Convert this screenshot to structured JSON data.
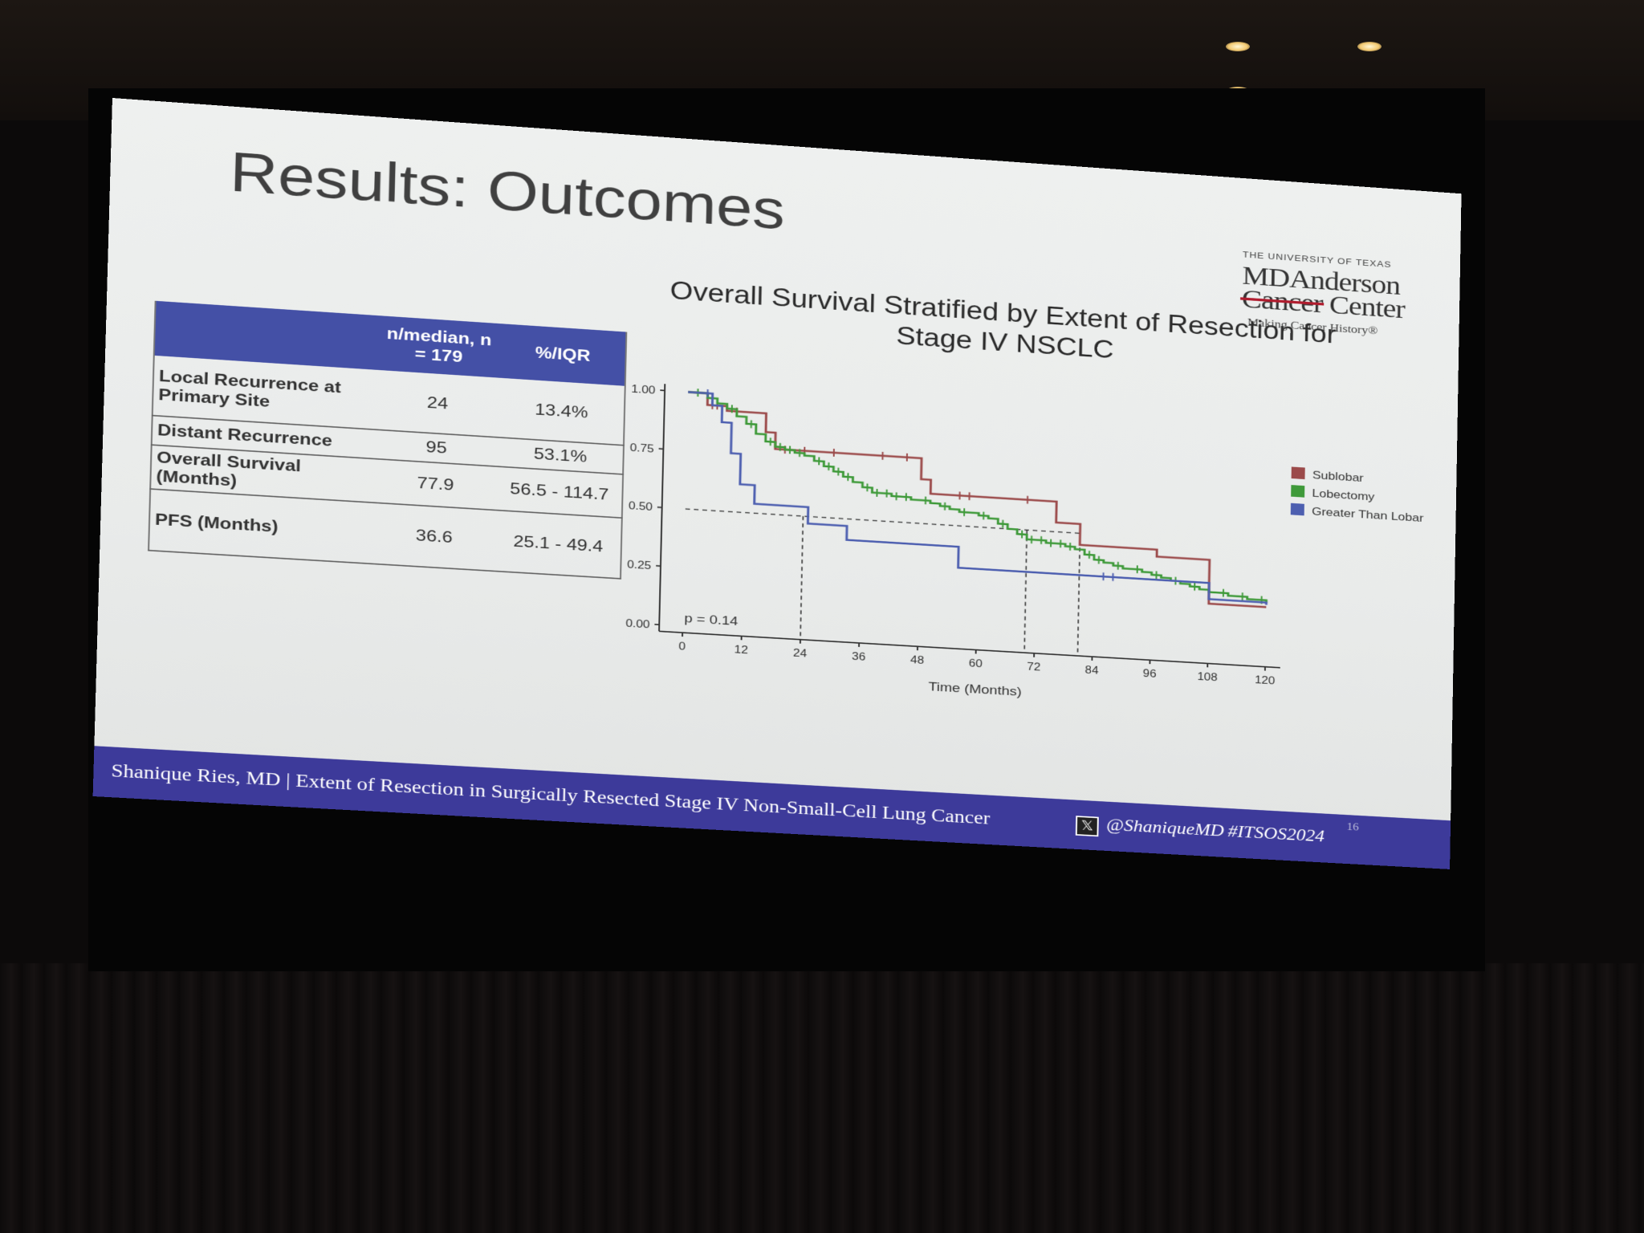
{
  "slide": {
    "title": "Results: Outcomes",
    "page_number": "16"
  },
  "logo": {
    "line1": "THE UNIVERSITY OF TEXAS",
    "line2": "MDAnderson",
    "line3a": "Cancer",
    "line3b": "Center",
    "tagline": "Making Cancer History®"
  },
  "table": {
    "headers": [
      "",
      "n/median, n = 179",
      "%/IQR"
    ],
    "rows": [
      {
        "label": "Local Recurrence at Primary Site",
        "value": "24",
        "pct": "13.4%"
      },
      {
        "label": "Distant Recurrence",
        "value": "95",
        "pct": "53.1%"
      },
      {
        "label": "Overall Survival (Months)",
        "value": "77.9",
        "pct": "56.5 - 114.7"
      },
      {
        "label": "PFS (Months)",
        "value": "36.6",
        "pct": "25.1 - 49.4"
      }
    ]
  },
  "footer": {
    "text": "Shanique Ries, MD | Extent of Resection in Surgically Resected Stage IV Non-Small-Cell Lung Cancer",
    "x_glyph": "𝕏",
    "handle": "@ShaniqueMD",
    "hashtag": "#ITSOS2024"
  },
  "colors": {
    "header_band": "#4450a6",
    "footer_band": "#3d3a9a",
    "sublobar": "#9b4a4a",
    "lobectomy": "#3f9a3a",
    "greater_than_lobar": "#4d5fb0"
  },
  "chart_data": {
    "type": "line",
    "title": "Overall Survival Stratified by Extent of Resection for Stage IV NSCLC",
    "xlabel": "Time (Months)",
    "ylabel": "",
    "xlim": [
      0,
      120
    ],
    "ylim": [
      0,
      1
    ],
    "xticks": [
      "0",
      "12",
      "24",
      "36",
      "48",
      "60",
      "72",
      "84",
      "96",
      "108",
      "120"
    ],
    "yticks": [
      "0.00",
      "0.25",
      "0.50",
      "0.75",
      "1.00"
    ],
    "legend_position": "right",
    "annotation": "p = 0.14",
    "median_line_y": 0.5,
    "median_drops": [
      24,
      70,
      81
    ],
    "series": [
      {
        "name": "Sublobar",
        "color": "#9b4a4a",
        "x": [
          0,
          3,
          4,
          8,
          14,
          16,
          18,
          47,
          48,
          50,
          75,
          76,
          80,
          81,
          96,
          97,
          107,
          108,
          120
        ],
        "y": [
          1.0,
          1.0,
          0.95,
          0.93,
          0.93,
          0.85,
          0.78,
          0.78,
          0.69,
          0.63,
          0.63,
          0.54,
          0.54,
          0.45,
          0.45,
          0.42,
          0.42,
          0.23,
          0.23
        ],
        "censored_x": [
          5,
          6,
          10,
          20,
          24,
          30,
          40,
          45,
          56,
          58,
          70
        ]
      },
      {
        "name": "Lobectomy",
        "color": "#3f9a3a",
        "x": [
          0,
          2,
          4,
          6,
          8,
          10,
          12,
          14,
          16,
          18,
          20,
          22,
          24,
          26,
          28,
          30,
          32,
          34,
          36,
          38,
          40,
          42,
          44,
          46,
          48,
          50,
          52,
          54,
          56,
          58,
          60,
          62,
          64,
          66,
          68,
          70,
          72,
          74,
          76,
          78,
          80,
          82,
          84,
          86,
          88,
          90,
          92,
          94,
          96,
          98,
          100,
          102,
          104,
          106,
          108,
          110,
          112,
          114,
          116,
          118,
          120
        ],
        "y": [
          1.0,
          1.0,
          0.98,
          0.96,
          0.94,
          0.91,
          0.88,
          0.84,
          0.81,
          0.79,
          0.78,
          0.77,
          0.76,
          0.74,
          0.72,
          0.7,
          0.68,
          0.66,
          0.64,
          0.62,
          0.62,
          0.61,
          0.61,
          0.6,
          0.6,
          0.59,
          0.58,
          0.57,
          0.56,
          0.56,
          0.55,
          0.54,
          0.52,
          0.5,
          0.48,
          0.46,
          0.46,
          0.45,
          0.45,
          0.44,
          0.43,
          0.41,
          0.39,
          0.38,
          0.37,
          0.36,
          0.36,
          0.35,
          0.34,
          0.33,
          0.32,
          0.31,
          0.3,
          0.29,
          0.28,
          0.28,
          0.27,
          0.27,
          0.26,
          0.26,
          0.25
        ],
        "censored_x": [
          2,
          5,
          9,
          13,
          17,
          19,
          21,
          23,
          27,
          29,
          31,
          33,
          37,
          39,
          41,
          43,
          45,
          49,
          53,
          57,
          61,
          65,
          69,
          71,
          73,
          75,
          77,
          79,
          83,
          85,
          89,
          93,
          97,
          101,
          105,
          111,
          115,
          119
        ]
      },
      {
        "name": "Greater Than Lobar",
        "color": "#4d5fb0",
        "x": [
          0,
          3,
          5,
          7,
          9,
          11,
          14,
          24,
          25,
          32,
          33,
          55,
          56,
          108,
          120
        ],
        "y": [
          1.0,
          1.0,
          0.95,
          0.88,
          0.75,
          0.62,
          0.54,
          0.54,
          0.47,
          0.47,
          0.41,
          0.41,
          0.32,
          0.25,
          0.24
        ],
        "censored_x": [
          4,
          86,
          88
        ]
      }
    ]
  }
}
